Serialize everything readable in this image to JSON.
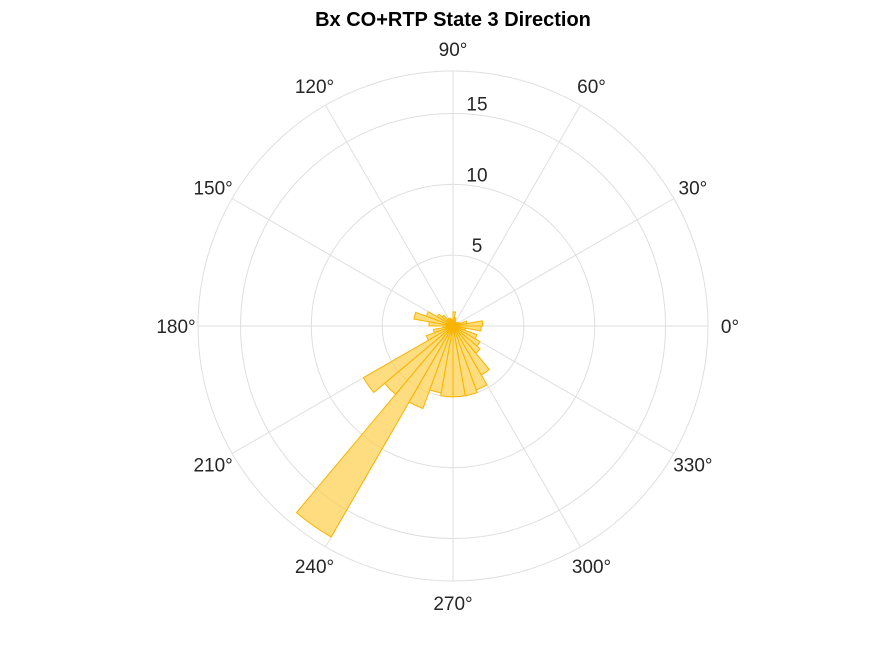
{
  "chart_data": {
    "type": "polar_histogram",
    "title": "Bx  CO+RTP State 3 Direction",
    "theta_ticks_deg": [
      0,
      30,
      60,
      90,
      120,
      150,
      180,
      210,
      240,
      270,
      300,
      330
    ],
    "theta_tick_labels": [
      "0°",
      "30°",
      "60°",
      "90°",
      "120°",
      "150°",
      "180°",
      "210°",
      "240°",
      "270°",
      "300°",
      "330°"
    ],
    "r_ticks": [
      5,
      10,
      15
    ],
    "r_tick_labels": [
      "5",
      "10",
      "15"
    ],
    "r_tick_angle_deg": 90,
    "rlim": [
      0,
      18
    ],
    "grid": true,
    "bin_width_deg": 10,
    "bins": [
      {
        "center_deg": 5,
        "value": 2.1
      },
      {
        "center_deg": 15,
        "value": 1.0
      },
      {
        "center_deg": 25,
        "value": 0.5
      },
      {
        "center_deg": 35,
        "value": 0.4
      },
      {
        "center_deg": 45,
        "value": 0.3
      },
      {
        "center_deg": 55,
        "value": 0.3
      },
      {
        "center_deg": 65,
        "value": 0.4
      },
      {
        "center_deg": 75,
        "value": 0.6
      },
      {
        "center_deg": 85,
        "value": 1.0
      },
      {
        "center_deg": 95,
        "value": 0.4
      },
      {
        "center_deg": 105,
        "value": 0.5
      },
      {
        "center_deg": 115,
        "value": 0.6
      },
      {
        "center_deg": 125,
        "value": 0.6
      },
      {
        "center_deg": 135,
        "value": 1.0
      },
      {
        "center_deg": 145,
        "value": 1.3
      },
      {
        "center_deg": 155,
        "value": 2.0
      },
      {
        "center_deg": 165,
        "value": 2.8
      },
      {
        "center_deg": 175,
        "value": 1.7
      },
      {
        "center_deg": 185,
        "value": 0.7
      },
      {
        "center_deg": 195,
        "value": 1.4
      },
      {
        "center_deg": 205,
        "value": 2.0
      },
      {
        "center_deg": 215,
        "value": 7.3
      },
      {
        "center_deg": 225,
        "value": 6.3
      },
      {
        "center_deg": 235,
        "value": 17.2
      },
      {
        "center_deg": 245,
        "value": 6.2
      },
      {
        "center_deg": 255,
        "value": 4.8
      },
      {
        "center_deg": 265,
        "value": 5.0
      },
      {
        "center_deg": 275,
        "value": 5.0
      },
      {
        "center_deg": 285,
        "value": 5.0
      },
      {
        "center_deg": 295,
        "value": 4.8
      },
      {
        "center_deg": 305,
        "value": 4.0
      },
      {
        "center_deg": 315,
        "value": 2.5
      },
      {
        "center_deg": 325,
        "value": 2.2
      },
      {
        "center_deg": 335,
        "value": 1.8
      },
      {
        "center_deg": 345,
        "value": 0.9
      },
      {
        "center_deg": 355,
        "value": 2.0
      }
    ],
    "colors": {
      "fill": "#fecf4a",
      "fill_opacity": 0.7,
      "edge": "#f8b400",
      "grid": "#dfdfdf",
      "text": "#262626"
    }
  }
}
